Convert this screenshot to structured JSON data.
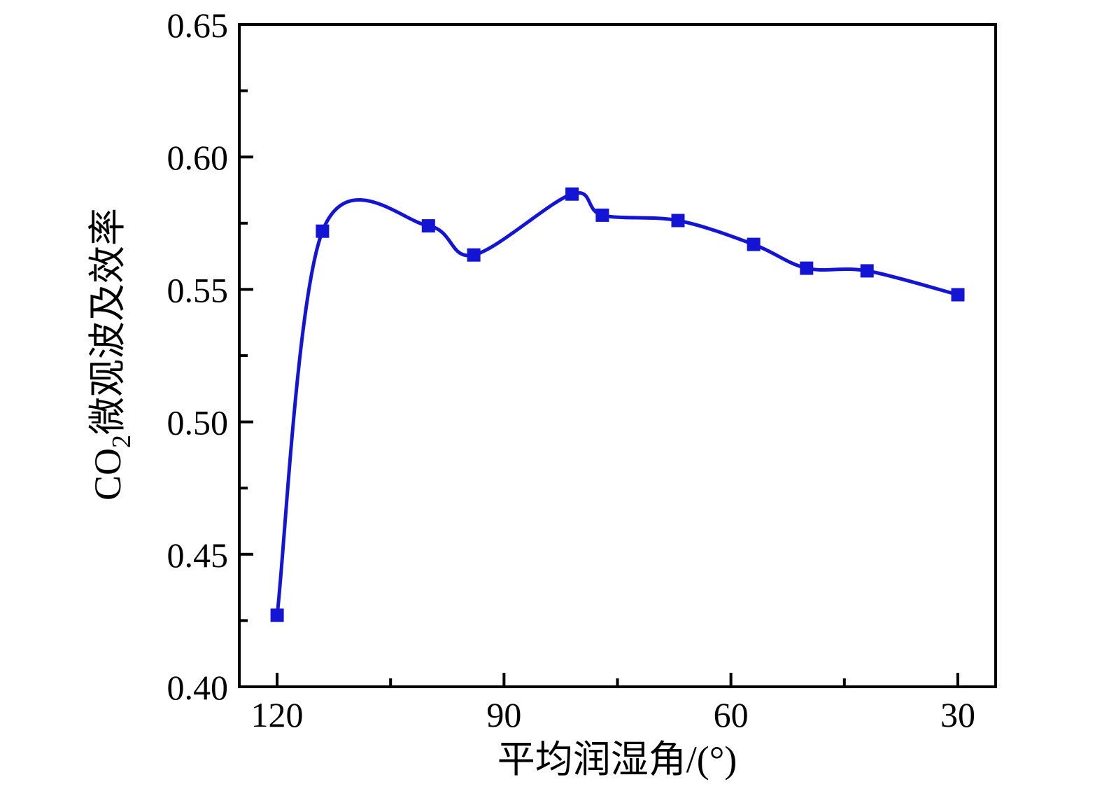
{
  "figure": {
    "background": "#ffffff",
    "axis_color": "#000000",
    "text_color": "#000000"
  },
  "chart_data": {
    "type": "line",
    "title": "",
    "xlabel": "平均润湿角/(°)",
    "ylabel": {
      "full": "CO2微观波及效率",
      "prefix": "CO",
      "subscript": "2",
      "rest": "微观波及效率"
    },
    "x": [
      120,
      114,
      100,
      94,
      81,
      77,
      67,
      57,
      50,
      42,
      30
    ],
    "y": [
      0.427,
      0.572,
      0.574,
      0.563,
      0.586,
      0.578,
      0.576,
      0.567,
      0.558,
      0.557,
      0.548
    ],
    "x_axis": {
      "reversed": true,
      "domain": [
        125,
        25
      ],
      "major_ticks": [
        120,
        90,
        60,
        30
      ],
      "minor_ticks": [
        105,
        75,
        45
      ],
      "tick_decimals": 0
    },
    "y_axis": {
      "domain": [
        0.4,
        0.65
      ],
      "major_ticks": [
        0.4,
        0.45,
        0.5,
        0.55,
        0.6,
        0.65
      ],
      "minor_ticks": [
        0.425,
        0.475,
        0.525,
        0.575,
        0.625
      ],
      "tick_decimals": 2
    },
    "series_name": "CO2微观波及效率",
    "line_color": "#1414D4",
    "marker_color": "#1414D4",
    "marker_shape": "filled-square",
    "marker_size": 19,
    "line_width": 5,
    "grid": false,
    "legend": false
  }
}
